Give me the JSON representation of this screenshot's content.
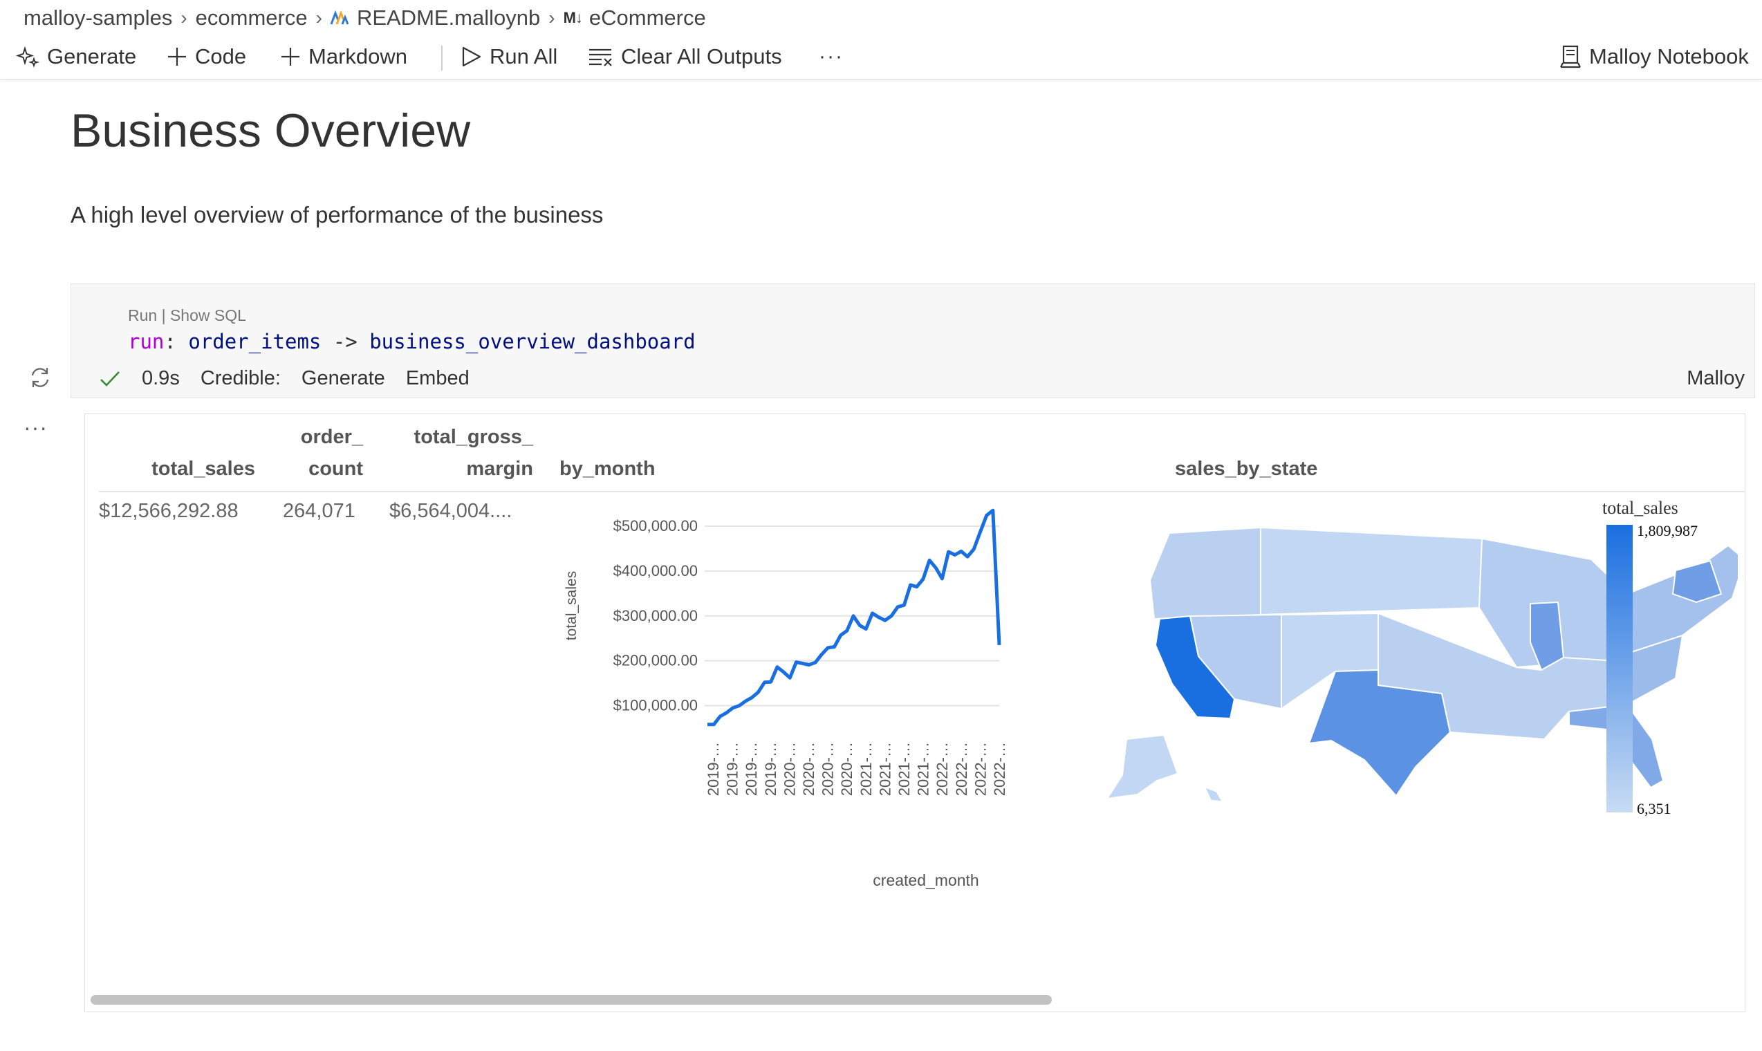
{
  "breadcrumb": {
    "items": [
      "malloy-samples",
      "ecommerce",
      "README.malloynb",
      "eCommerce"
    ],
    "md_glyph": "M↓"
  },
  "toolbar": {
    "generate": "Generate",
    "code": "Code",
    "markdown": "Markdown",
    "run_all": "Run All",
    "clear_outputs": "Clear All Outputs",
    "more": "···",
    "kernel": "Malloy Notebook"
  },
  "doc": {
    "title": "Business Overview",
    "description": "A high level overview of performance of the business"
  },
  "cell": {
    "run_link": "Run",
    "link_sep": " | ",
    "show_sql_link": "Show SQL",
    "code": {
      "keyword": "run",
      "colon": ": ",
      "source": "order_items",
      "arrow": " -> ",
      "view": "business_overview_dashboard"
    },
    "status": {
      "time": "0.9s",
      "credible": "Credible:",
      "generate": "Generate",
      "embed": "Embed"
    },
    "language": "Malloy",
    "more": "···"
  },
  "result": {
    "headers": {
      "total_sales": "total_sales",
      "order_count_1": "order_",
      "order_count_2": "count",
      "gross_margin_1": "total_gross_",
      "gross_margin_2": "margin",
      "by_month": "by_month",
      "sales_by_state": "sales_by_state"
    },
    "values": {
      "total_sales": "$12,566,292.88",
      "order_count": "264,071",
      "total_gross_margin": "$6,564,004...."
    }
  },
  "chart_data": [
    {
      "type": "line",
      "xlabel": "created_month",
      "ylabel": "total_sales",
      "x_tick_labels": [
        "2019-…",
        "2019-…",
        "2019-…",
        "2019-…",
        "2020-…",
        "2020-…",
        "2020-…",
        "2020-…",
        "2021-…",
        "2021-…",
        "2021-…",
        "2021-…",
        "2022-…",
        "2022-…",
        "2022-…",
        "2022-…"
      ],
      "y_ticks": [
        100000,
        200000,
        300000,
        400000,
        500000
      ],
      "y_tick_labels": [
        "$100,000.00",
        "$200,000.00",
        "$300,000.00",
        "$400,000.00",
        "$500,000.00"
      ],
      "ylim": [
        50000,
        540000
      ],
      "grid": true,
      "color": "#1a6fe0",
      "values": [
        58000,
        58000,
        76000,
        84000,
        95000,
        100000,
        110000,
        118000,
        130000,
        152000,
        153000,
        186000,
        175000,
        162000,
        197000,
        194000,
        191000,
        196000,
        214000,
        229000,
        231000,
        257000,
        267000,
        300000,
        279000,
        271000,
        306000,
        297000,
        290000,
        300000,
        320000,
        324000,
        369000,
        365000,
        382000,
        424000,
        407000,
        383000,
        443000,
        436000,
        444000,
        432000,
        449000,
        487000,
        524000,
        535000,
        235000
      ]
    },
    {
      "type": "heatmap",
      "subtype": "choropleth-us-states",
      "legend_title": "total_sales",
      "legend_max": "1,809,987",
      "legend_min": "6,351",
      "legend_placement": "right",
      "color_min": "#c8dbf3",
      "color_max": "#1a6fe0",
      "highlights": {
        "California": 1809987,
        "Texas": 950000,
        "Florida": 650000,
        "New York": 700000,
        "Illinois": 500000
      }
    }
  ]
}
